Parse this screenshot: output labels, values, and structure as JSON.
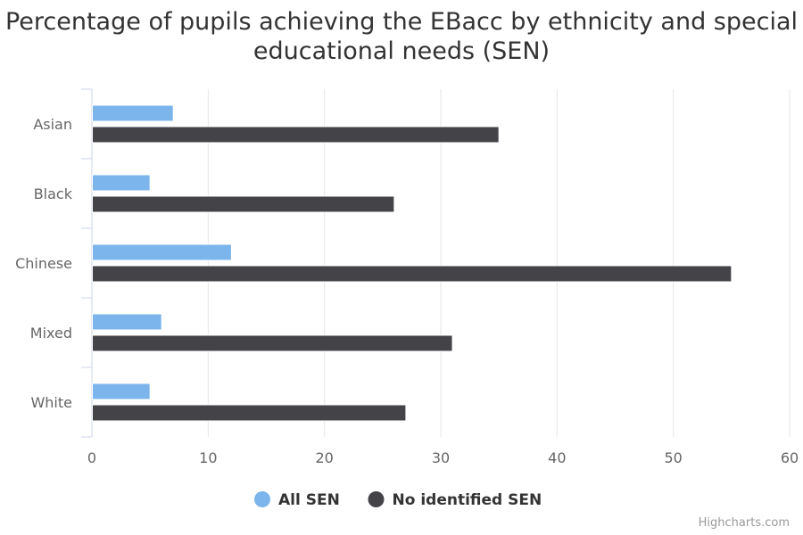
{
  "chart_data": {
    "type": "bar",
    "orientation": "horizontal",
    "title": "Percentage of pupils achieving the EBacc by ethnicity and special educational needs (SEN)",
    "categories": [
      "Asian",
      "Black",
      "Chinese",
      "Mixed",
      "White"
    ],
    "series": [
      {
        "name": "All SEN",
        "color": "#7cb5ec",
        "values": [
          7,
          5,
          12,
          6,
          5
        ]
      },
      {
        "name": "No identified SEN",
        "color": "#434348",
        "values": [
          35,
          26,
          55,
          31,
          27
        ]
      }
    ],
    "xlim": [
      0,
      60
    ],
    "ticks": [
      0,
      10,
      20,
      30,
      40,
      50,
      60
    ],
    "xlabel": "",
    "ylabel": "",
    "grid": true,
    "legend_position": "bottom-center"
  },
  "credits": "Highcharts.com"
}
